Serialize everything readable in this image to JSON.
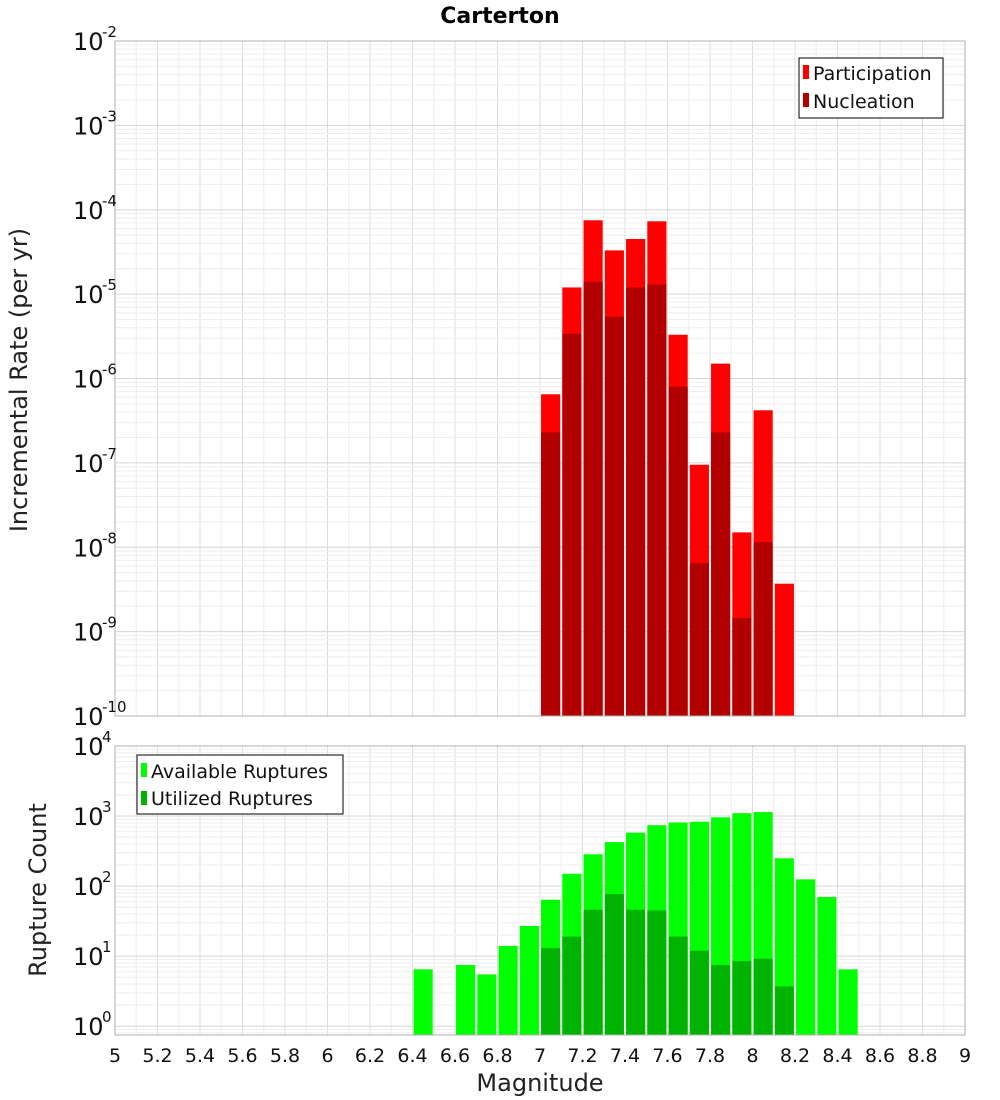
{
  "chart_data": [
    {
      "type": "bar",
      "title": "Carterton",
      "ylabel": "Incremental Rate (per yr)",
      "xlabel": "",
      "x_range": [
        5,
        9
      ],
      "ylim": [
        1e-10,
        0.01
      ],
      "y_scale": "log",
      "y_tick_exponents": [
        -10,
        -9,
        -8,
        -7,
        -6,
        -5,
        -4,
        -3,
        -2
      ],
      "grid": true,
      "legend_position": "top-right",
      "bar_width": 0.09,
      "x": [
        7.05,
        7.15,
        7.25,
        7.35,
        7.45,
        7.55,
        7.65,
        7.75,
        7.85,
        7.95,
        8.05,
        8.15
      ],
      "series": [
        {
          "name": "Participation",
          "color": "#ff0000",
          "values": [
            6.5e-07,
            1.2e-05,
            7.5e-05,
            3.3e-05,
            4.5e-05,
            7.3e-05,
            3.3e-06,
            9.5e-08,
            1.5e-06,
            1.5e-08,
            4.2e-07,
            3.7e-09
          ]
        },
        {
          "name": "Nucleation",
          "color": "#b20000",
          "values": [
            2.3e-07,
            3.4e-06,
            1.4e-05,
            5.4e-06,
            1.2e-05,
            1.3e-05,
            8e-07,
            6.5e-09,
            2.3e-07,
            1.45e-09,
            1.15e-08,
            null
          ]
        }
      ]
    },
    {
      "type": "bar",
      "title": "",
      "ylabel": "Rupture Count",
      "xlabel": "Magnitude",
      "x_range": [
        5,
        9
      ],
      "x_ticks": [
        "5",
        "5.2",
        "5.4",
        "5.6",
        "5.8",
        "6",
        "6.2",
        "6.4",
        "6.6",
        "6.8",
        "7",
        "7.2",
        "7.4",
        "7.6",
        "7.8",
        "8",
        "8.2",
        "8.4",
        "8.6",
        "8.8",
        "9"
      ],
      "ylim": [
        0.75,
        10000
      ],
      "y_scale": "log",
      "y_tick_exponents": [
        0,
        1,
        2,
        3,
        4
      ],
      "grid": true,
      "legend_position": "top-left",
      "bar_width": 0.09,
      "x": [
        6.45,
        6.55,
        6.65,
        6.75,
        6.85,
        6.95,
        7.05,
        7.15,
        7.25,
        7.35,
        7.45,
        7.55,
        7.65,
        7.75,
        7.85,
        7.95,
        8.05,
        8.15,
        8.25,
        8.35,
        8.45
      ],
      "series": [
        {
          "name": "Available Ruptures",
          "color": "#00ff00",
          "values": [
            6.5,
            null,
            7.5,
            5.5,
            14,
            27,
            64,
            150,
            285,
            425,
            580,
            740,
            810,
            830,
            960,
            1100,
            1140,
            250,
            125,
            70,
            6.5
          ]
        },
        {
          "name": "Utilized Ruptures",
          "color": "#00b300",
          "values": [
            null,
            null,
            null,
            null,
            null,
            null,
            13,
            19,
            46,
            77,
            46,
            45,
            19,
            12,
            7.5,
            8.5,
            9.2,
            3.7,
            null,
            null,
            null
          ]
        }
      ]
    }
  ]
}
